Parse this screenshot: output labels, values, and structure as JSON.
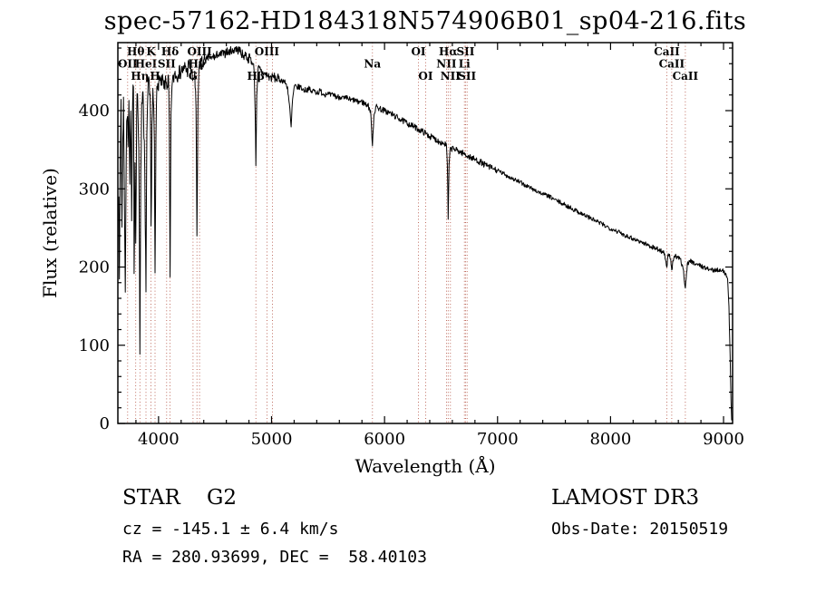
{
  "title": "spec-57162-HD184318N574906B01_sp04-216.fits",
  "colors": {
    "spectrum": "#000000",
    "marker_line": "#b04a3a",
    "marker_label": "#7a1f1f",
    "axis": "#000000",
    "background": "#ffffff"
  },
  "footer": {
    "class_label": "STAR",
    "subclass": "G2",
    "survey": "LAMOST DR3",
    "cz": "cz = -145.1 ± 6.4 km/s",
    "obs_date": "Obs-Date: 20150519",
    "ra_dec": "RA = 280.93699, DEC =  58.40103"
  },
  "chart_data": {
    "type": "line",
    "title": "spec-57162-HD184318N574906B01_sp04-216.fits",
    "xlabel": "Wavelength (Å)",
    "ylabel": "Flux (relative)",
    "xlim": [
      3640,
      9080
    ],
    "ylim": [
      0,
      487
    ],
    "xticks": [
      4000,
      5000,
      6000,
      7000,
      8000,
      9000
    ],
    "yticks": [
      0,
      100,
      200,
      300,
      400
    ],
    "grid": false,
    "legend": "none",
    "series": [
      {
        "name": "spectrum",
        "points": [
          [
            3648,
            300
          ],
          [
            3654,
            175
          ],
          [
            3660,
            330
          ],
          [
            3668,
            415
          ],
          [
            3676,
            250
          ],
          [
            3684,
            370
          ],
          [
            3690,
            412
          ],
          [
            3698,
            290
          ],
          [
            3706,
            172
          ],
          [
            3714,
            340
          ],
          [
            3722,
            395
          ],
          [
            3730,
            360
          ],
          [
            3738,
            420
          ],
          [
            3746,
            305
          ],
          [
            3754,
            408
          ],
          [
            3762,
            258
          ],
          [
            3770,
            400
          ],
          [
            3778,
            428
          ],
          [
            3784,
            185
          ],
          [
            3792,
            340
          ],
          [
            3798,
            232
          ],
          [
            3806,
            398
          ],
          [
            3814,
            424
          ],
          [
            3822,
            368
          ],
          [
            3828,
            298
          ],
          [
            3835,
            92
          ],
          [
            3843,
            330
          ],
          [
            3851,
            402
          ],
          [
            3859,
            430
          ],
          [
            3866,
            408
          ],
          [
            3874,
            358
          ],
          [
            3882,
            252
          ],
          [
            3889,
            165
          ],
          [
            3897,
            378
          ],
          [
            3905,
            416
          ],
          [
            3913,
            434
          ],
          [
            3921,
            418
          ],
          [
            3928,
            388
          ],
          [
            3934,
            246
          ],
          [
            3942,
            382
          ],
          [
            3950,
            424
          ],
          [
            3958,
            398
          ],
          [
            3963,
            348
          ],
          [
            3969,
            186
          ],
          [
            3977,
            362
          ],
          [
            3985,
            430
          ],
          [
            3993,
            440
          ],
          [
            4003,
            434
          ],
          [
            4013,
            444
          ],
          [
            4023,
            430
          ],
          [
            4035,
            441
          ],
          [
            4048,
            427
          ],
          [
            4061,
            439
          ],
          [
            4074,
            431
          ],
          [
            4088,
            441
          ],
          [
            4095,
            382
          ],
          [
            4102,
            186
          ],
          [
            4110,
            391
          ],
          [
            4119,
            434
          ],
          [
            4131,
            441
          ],
          [
            4146,
            450
          ],
          [
            4161,
            444
          ],
          [
            4176,
            451
          ],
          [
            4191,
            446
          ],
          [
            4206,
            454
          ],
          [
            4221,
            449
          ],
          [
            4236,
            457
          ],
          [
            4252,
            451
          ],
          [
            4270,
            459
          ],
          [
            4290,
            454
          ],
          [
            4305,
            436
          ],
          [
            4320,
            450
          ],
          [
            4332,
            402
          ],
          [
            4340,
            236
          ],
          [
            4349,
            412
          ],
          [
            4361,
            459
          ],
          [
            4376,
            464
          ],
          [
            4392,
            459
          ],
          [
            4410,
            467
          ],
          [
            4429,
            464
          ],
          [
            4448,
            470
          ],
          [
            4467,
            465
          ],
          [
            4486,
            471
          ],
          [
            4505,
            467
          ],
          [
            4524,
            473
          ],
          [
            4543,
            469
          ],
          [
            4562,
            475
          ],
          [
            4581,
            471
          ],
          [
            4600,
            477
          ],
          [
            4619,
            473
          ],
          [
            4638,
            479
          ],
          [
            4657,
            475
          ],
          [
            4676,
            481
          ],
          [
            4695,
            477
          ],
          [
            4714,
            479
          ],
          [
            4733,
            473
          ],
          [
            4752,
            470
          ],
          [
            4771,
            472
          ],
          [
            4790,
            466
          ],
          [
            4809,
            468
          ],
          [
            4828,
            461
          ],
          [
            4845,
            454
          ],
          [
            4855,
            402
          ],
          [
            4861,
            331
          ],
          [
            4869,
            421
          ],
          [
            4882,
            454
          ],
          [
            4902,
            451
          ],
          [
            4922,
            449
          ],
          [
            4942,
            447
          ],
          [
            4962,
            445
          ],
          [
            4982,
            443
          ],
          [
            5002,
            442
          ],
          [
            5022,
            443
          ],
          [
            5042,
            440
          ],
          [
            5062,
            441
          ],
          [
            5082,
            438
          ],
          [
            5102,
            439
          ],
          [
            5122,
            435
          ],
          [
            5142,
            430
          ],
          [
            5162,
            401
          ],
          [
            5173,
            378
          ],
          [
            5186,
            414
          ],
          [
            5202,
            431
          ],
          [
            5227,
            429
          ],
          [
            5252,
            431
          ],
          [
            5277,
            427
          ],
          [
            5302,
            426
          ],
          [
            5327,
            428
          ],
          [
            5352,
            424
          ],
          [
            5377,
            426
          ],
          [
            5402,
            423
          ],
          [
            5432,
            425
          ],
          [
            5462,
            421
          ],
          [
            5492,
            422
          ],
          [
            5522,
            419
          ],
          [
            5552,
            420
          ],
          [
            5582,
            417
          ],
          [
            5612,
            418
          ],
          [
            5642,
            415
          ],
          [
            5672,
            416
          ],
          [
            5702,
            413
          ],
          [
            5732,
            414
          ],
          [
            5762,
            411
          ],
          [
            5792,
            412
          ],
          [
            5822,
            409
          ],
          [
            5852,
            407
          ],
          [
            5876,
            399
          ],
          [
            5893,
            356
          ],
          [
            5906,
            394
          ],
          [
            5922,
            405
          ],
          [
            5952,
            403
          ],
          [
            5982,
            401
          ],
          [
            6012,
            399
          ],
          [
            6042,
            397
          ],
          [
            6072,
            395
          ],
          [
            6102,
            392
          ],
          [
            6132,
            390
          ],
          [
            6162,
            387
          ],
          [
            6192,
            385
          ],
          [
            6222,
            382
          ],
          [
            6252,
            380
          ],
          [
            6282,
            378
          ],
          [
            6312,
            375
          ],
          [
            6342,
            373
          ],
          [
            6372,
            370
          ],
          [
            6402,
            367
          ],
          [
            6432,
            365
          ],
          [
            6462,
            362
          ],
          [
            6492,
            360
          ],
          [
            6522,
            358
          ],
          [
            6548,
            356
          ],
          [
            6556,
            330
          ],
          [
            6563,
            262
          ],
          [
            6571,
            331
          ],
          [
            6583,
            352
          ],
          [
            6612,
            351
          ],
          [
            6642,
            349
          ],
          [
            6672,
            347
          ],
          [
            6702,
            345
          ],
          [
            6732,
            342
          ],
          [
            6762,
            340
          ],
          [
            6792,
            338
          ],
          [
            6822,
            336
          ],
          [
            6852,
            334
          ],
          [
            6882,
            331
          ],
          [
            6912,
            329
          ],
          [
            6942,
            327
          ],
          [
            6972,
            325
          ],
          [
            7002,
            323
          ],
          [
            7042,
            320
          ],
          [
            7082,
            317
          ],
          [
            7122,
            314
          ],
          [
            7162,
            311
          ],
          [
            7202,
            308
          ],
          [
            7242,
            305
          ],
          [
            7282,
            302
          ],
          [
            7322,
            299
          ],
          [
            7362,
            296
          ],
          [
            7402,
            293
          ],
          [
            7442,
            291
          ],
          [
            7482,
            288
          ],
          [
            7522,
            285
          ],
          [
            7562,
            282
          ],
          [
            7602,
            279
          ],
          [
            7642,
            276
          ],
          [
            7682,
            273
          ],
          [
            7722,
            270
          ],
          [
            7762,
            267
          ],
          [
            7802,
            264
          ],
          [
            7842,
            261
          ],
          [
            7882,
            258
          ],
          [
            7922,
            255
          ],
          [
            7962,
            252
          ],
          [
            8002,
            249
          ],
          [
            8042,
            247
          ],
          [
            8082,
            244
          ],
          [
            8122,
            241
          ],
          [
            8162,
            239
          ],
          [
            8202,
            236
          ],
          [
            8242,
            234
          ],
          [
            8282,
            231
          ],
          [
            8322,
            229
          ],
          [
            8362,
            226
          ],
          [
            8402,
            224
          ],
          [
            8442,
            221
          ],
          [
            8472,
            219
          ],
          [
            8490,
            208
          ],
          [
            8498,
            199
          ],
          [
            8508,
            214
          ],
          [
            8522,
            216
          ],
          [
            8536,
            204
          ],
          [
            8542,
            195
          ],
          [
            8552,
            209
          ],
          [
            8572,
            214
          ],
          [
            8592,
            212
          ],
          [
            8617,
            210
          ],
          [
            8642,
            198
          ],
          [
            8662,
            174
          ],
          [
            8680,
            204
          ],
          [
            8702,
            208
          ],
          [
            8732,
            206
          ],
          [
            8762,
            204
          ],
          [
            8792,
            202
          ],
          [
            8822,
            200
          ],
          [
            8852,
            198
          ],
          [
            8882,
            197
          ],
          [
            8912,
            196
          ],
          [
            8942,
            196
          ],
          [
            8972,
            197
          ],
          [
            9002,
            194
          ],
          [
            9022,
            191
          ],
          [
            9036,
            184
          ],
          [
            9048,
            148
          ],
          [
            9058,
            88
          ],
          [
            9066,
            28
          ],
          [
            9072,
            4
          ]
        ]
      }
    ],
    "spectral_lines": [
      {
        "label": "OII",
        "wavelength": 3727,
        "row": 2
      },
      {
        "label": "Hθ",
        "wavelength": 3798,
        "row": 1
      },
      {
        "label": "Hη",
        "wavelength": 3835,
        "row": 3
      },
      {
        "label": "HeI",
        "wavelength": 3889,
        "row": 2
      },
      {
        "label": "K",
        "wavelength": 3934,
        "row": 1
      },
      {
        "label": "H",
        "wavelength": 3969,
        "row": 3
      },
      {
        "label": "SII",
        "wavelength": 4072,
        "row": 2
      },
      {
        "label": "Hδ",
        "wavelength": 4102,
        "row": 1
      },
      {
        "label": "G",
        "wavelength": 4305,
        "row": 3
      },
      {
        "label": "Hγ",
        "wavelength": 4340,
        "row": 2
      },
      {
        "label": "OIII",
        "wavelength": 4363,
        "row": 1
      },
      {
        "label": "Hβ",
        "wavelength": 4861,
        "row": 3
      },
      {
        "label": "OIII",
        "wavelength": 4959,
        "row": 1
      },
      {
        "label": "",
        "wavelength": 5007,
        "row": 1
      },
      {
        "label": "Na",
        "wavelength": 5893,
        "row": 2
      },
      {
        "label": "OI",
        "wavelength": 6300,
        "row": 1
      },
      {
        "label": "OI",
        "wavelength": 6363,
        "row": 3
      },
      {
        "label": "NII",
        "wavelength": 6548,
        "row": 2
      },
      {
        "label": "Hα",
        "wavelength": 6563,
        "row": 1
      },
      {
        "label": "NII",
        "wavelength": 6583,
        "row": 3
      },
      {
        "label": "Li",
        "wavelength": 6707,
        "row": 2
      },
      {
        "label": "SII",
        "wavelength": 6716,
        "row": 1
      },
      {
        "label": "SII",
        "wavelength": 6731,
        "row": 3
      },
      {
        "label": "CaII",
        "wavelength": 8498,
        "row": 1
      },
      {
        "label": "CaII",
        "wavelength": 8542,
        "row": 2
      },
      {
        "label": "CaII",
        "wavelength": 8662,
        "row": 3
      }
    ]
  }
}
